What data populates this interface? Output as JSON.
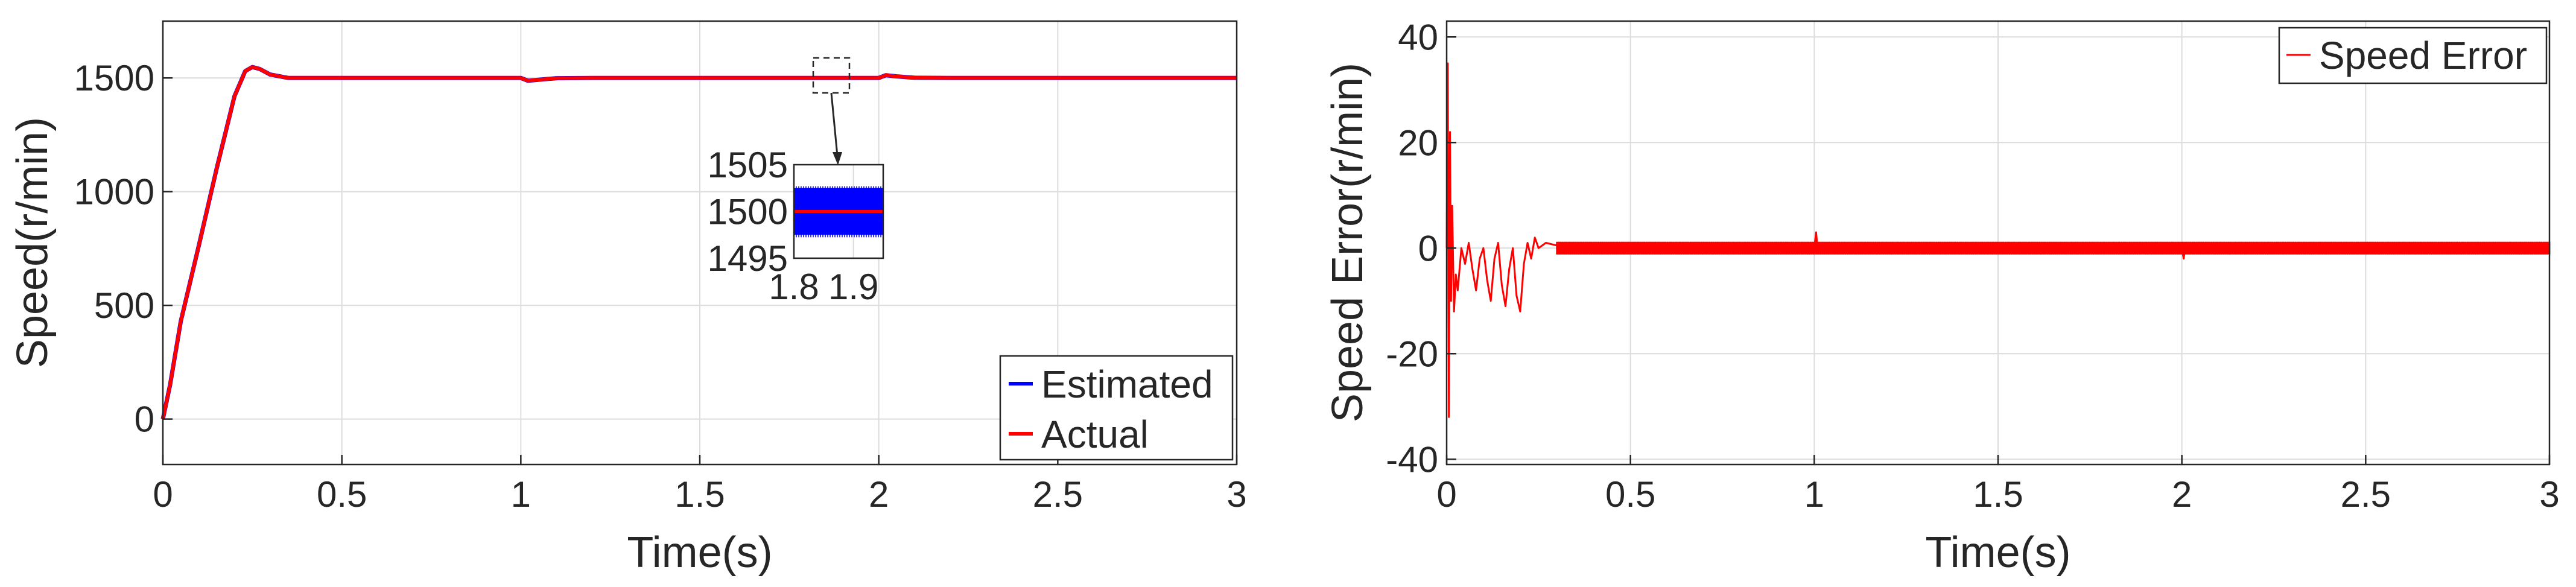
{
  "chart_data": [
    {
      "type": "line",
      "xlabel": "Time(s)",
      "ylabel": "Speed(r/min)",
      "xlim": [
        0,
        3
      ],
      "ylim": [
        -200,
        1750
      ],
      "xticks": [
        0,
        0.5,
        1,
        1.5,
        2,
        2.5,
        3
      ],
      "xtick_labels": [
        "0",
        "0.5",
        "1",
        "1.5",
        "2",
        "2.5",
        "3"
      ],
      "yticks": [
        0,
        500,
        1000,
        1500
      ],
      "ytick_labels": [
        "0",
        "500",
        "1000",
        "1500"
      ],
      "grid": true,
      "legend_position": "bottom-right",
      "series": [
        {
          "name": "Estimated",
          "color": "#0000ff",
          "x": [
            0,
            0.02,
            0.05,
            0.1,
            0.15,
            0.2,
            0.23,
            0.25,
            0.27,
            0.3,
            0.35,
            0.4,
            0.5,
            1.0,
            1.02,
            1.05,
            1.1,
            1.2,
            2.0,
            2.02,
            2.05,
            2.1,
            2.2,
            3.0
          ],
          "y": [
            0,
            150,
            430,
            760,
            1100,
            1420,
            1530,
            1548,
            1540,
            1515,
            1500,
            1500,
            1500,
            1500,
            1488,
            1492,
            1499,
            1500,
            1500,
            1512,
            1507,
            1501,
            1500,
            1500
          ]
        },
        {
          "name": "Actual",
          "color": "#ff0000",
          "x": [
            0,
            0.02,
            0.05,
            0.1,
            0.15,
            0.2,
            0.23,
            0.25,
            0.27,
            0.3,
            0.35,
            0.4,
            0.5,
            1.0,
            1.02,
            1.05,
            1.1,
            1.2,
            2.0,
            2.02,
            2.05,
            2.1,
            2.2,
            3.0
          ],
          "y": [
            0,
            150,
            430,
            760,
            1100,
            1420,
            1530,
            1548,
            1540,
            1515,
            1500,
            1500,
            1500,
            1500,
            1488,
            1492,
            1499,
            1500,
            1500,
            1512,
            1507,
            1501,
            1500,
            1500
          ]
        }
      ],
      "inset": {
        "xlim": [
          1.8,
          1.95
        ],
        "ylim": [
          1495,
          1505
        ],
        "xticks": [
          1.8,
          1.9
        ],
        "xtick_labels": [
          "1.8",
          "1.9"
        ],
        "yticks": [
          1495,
          1500,
          1505
        ],
        "ytick_labels": [
          "1495",
          "1500",
          "1505"
        ],
        "estimated_band": [
          1497.5,
          1502.5
        ],
        "actual_value": 1500
      }
    },
    {
      "type": "line",
      "xlabel": "Time(s)",
      "ylabel": "Speed Error(r/min)",
      "xlim": [
        0,
        3
      ],
      "ylim": [
        -41,
        43
      ],
      "xticks": [
        0,
        0.5,
        1,
        1.5,
        2,
        2.5,
        3
      ],
      "xtick_labels": [
        "0",
        "0.5",
        "1",
        "1.5",
        "2",
        "2.5",
        "3"
      ],
      "yticks": [
        -40,
        -20,
        0,
        20,
        40
      ],
      "ytick_labels": [
        "-40",
        "-20",
        "0",
        "20",
        "40"
      ],
      "grid": true,
      "legend_position": "top-right",
      "series": [
        {
          "name": "Speed Error",
          "color": "#ff0000",
          "x": [
            0,
            0.003,
            0.006,
            0.009,
            0.012,
            0.015,
            0.02,
            0.025,
            0.03,
            0.04,
            0.05,
            0.06,
            0.07,
            0.08,
            0.09,
            0.1,
            0.11,
            0.12,
            0.13,
            0.14,
            0.15,
            0.16,
            0.17,
            0.18,
            0.19,
            0.2,
            0.21,
            0.22,
            0.23,
            0.24,
            0.25,
            0.27,
            0.3,
            0.35,
            0.5,
            1.0,
            1.005,
            1.01,
            1.03,
            1.1,
            2.0,
            2.005,
            2.01,
            2.03,
            2.1,
            3.0
          ],
          "y": [
            0,
            35,
            -32,
            22,
            -10,
            8,
            -12,
            -5,
            -8,
            0,
            -3,
            1,
            -4,
            -8,
            -2,
            0,
            -6,
            -10,
            -2,
            1,
            -7,
            -11,
            -4,
            0,
            -9,
            -12,
            -3,
            1,
            -2,
            2,
            0,
            1,
            0.5,
            0,
            0,
            0,
            3,
            -1,
            -0.5,
            0,
            0,
            -2,
            1,
            0.5,
            0,
            0
          ],
          "band_amplitude": 1.2
        }
      ]
    }
  ]
}
